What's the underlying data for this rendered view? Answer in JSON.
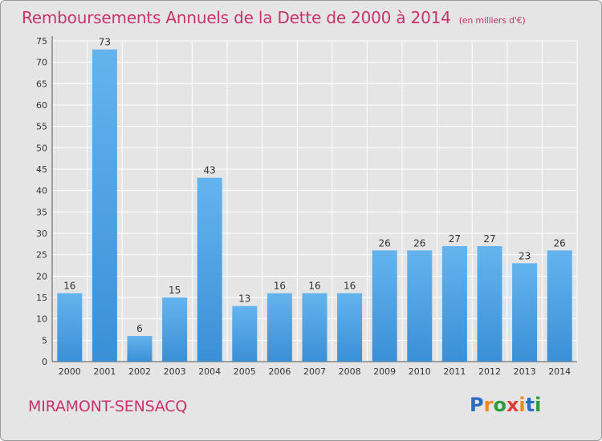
{
  "chart_data": {
    "type": "bar",
    "title": "Remboursements Annuels de la Dette de 2000 à 2014",
    "subtitle": "(en milliers d'€)",
    "xlabel": "",
    "ylabel": "",
    "categories": [
      "2000",
      "2001",
      "2002",
      "2003",
      "2004",
      "2005",
      "2006",
      "2007",
      "2008",
      "2009",
      "2010",
      "2011",
      "2012",
      "2013",
      "2014"
    ],
    "values": [
      16,
      73,
      6,
      15,
      43,
      13,
      16,
      16,
      16,
      26,
      26,
      27,
      27,
      23,
      26
    ],
    "ylim": [
      0,
      75
    ],
    "yticks": [
      0,
      5,
      10,
      15,
      20,
      25,
      30,
      35,
      40,
      45,
      50,
      55,
      60,
      65,
      70,
      75
    ],
    "grid": true,
    "bar_color": "#3b8fd6",
    "bar_color_light": "#63b4ee",
    "grid_color": "#ffffff"
  },
  "place": "MIRAMONT-SENSACQ",
  "logo": {
    "letters": [
      "P",
      "r",
      "o",
      "x",
      "i",
      "t",
      "i"
    ],
    "colors": [
      "#2b6cc4",
      "#f08a1c",
      "#2d9b3b",
      "#e33b3b",
      "#f08a1c",
      "#2b6cc4",
      "#2d9b3b"
    ]
  }
}
